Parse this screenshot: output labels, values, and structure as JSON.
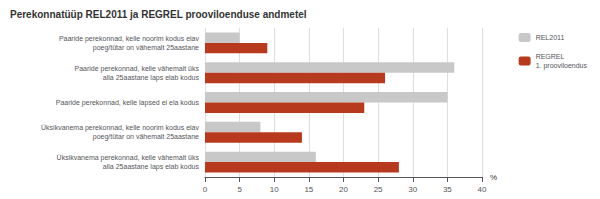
{
  "chart_data": {
    "type": "bar",
    "orientation": "horizontal",
    "title": "Perekonnatüüp REL2011 ja REGREL prooviloenduse andmetel",
    "xlabel": "%",
    "categories": [
      "Paaride perekonnad, kelle noorim kodus elav\npoeg/tütar on vähemalt 25aastane",
      "Paaride perekonnad, kelle vähemalt üks\nalla 25aastane laps elab kodus",
      "Paaride perekonnad, kelle lapsed ei ela kodus",
      "Üksikvanema perekonnad, kelle noorim kodus elav\npoeg/tütar on vähemalt 25aastane",
      "Üksikvanema perekonnad, kelle vähemalt üks\nalla 25aastane laps elab kodus"
    ],
    "series": [
      {
        "name": "REL2011",
        "color": "#c8c8c8",
        "values": [
          5,
          36,
          35,
          8,
          16
        ]
      },
      {
        "name": "REGREL\n1. prooviloendus",
        "color": "#b83a1e",
        "values": [
          9,
          26,
          23,
          14,
          28
        ]
      }
    ],
    "xlim": [
      0,
      40
    ],
    "xticks": [
      0,
      5,
      10,
      15,
      20,
      25,
      30,
      35,
      40
    ],
    "grid": true,
    "legend": "right"
  }
}
